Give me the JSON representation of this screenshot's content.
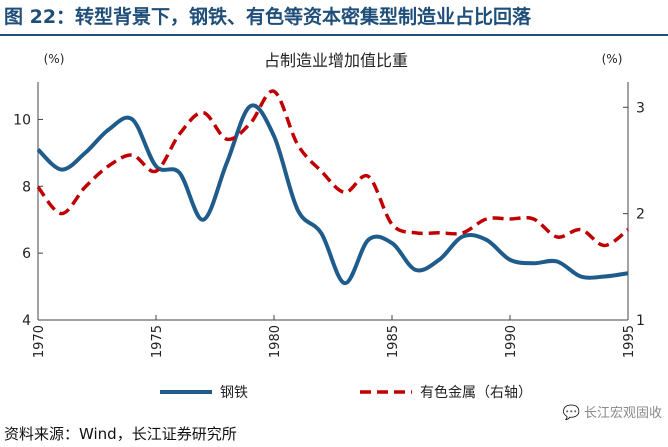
{
  "figure": {
    "title": "图 22：转型背景下，钢铁、有色等资本密集型制造业占比回落",
    "source": "资料来源：Wind，长江证券研究所",
    "watermark": "长江宏观固收",
    "watermark_icon": "wechat-bubble-icon"
  },
  "chart_data": {
    "type": "line",
    "title": "占制造业增加值比重",
    "left_unit": "(%)",
    "right_unit": "(%)",
    "xlim": [
      1970,
      1995
    ],
    "left_ylim": [
      4,
      11
    ],
    "right_ylim": [
      1,
      3.2
    ],
    "x_ticks": [
      1970,
      1975,
      1980,
      1985,
      1990,
      1995
    ],
    "left_ticks": [
      4,
      6,
      8,
      10
    ],
    "right_ticks": [
      1,
      2,
      3
    ],
    "grid": false,
    "legend_position": "bottom",
    "series": [
      {
        "name": "钢铁",
        "axis": "left",
        "color": "#1f5c8b",
        "style": "solid",
        "x": [
          1970,
          1971,
          1972,
          1973,
          1974,
          1975,
          1976,
          1977,
          1978,
          1979,
          1980,
          1981,
          1982,
          1983,
          1984,
          1985,
          1986,
          1987,
          1988,
          1989,
          1990,
          1991,
          1992,
          1993,
          1994,
          1995
        ],
        "values": [
          9.1,
          8.5,
          9.0,
          9.7,
          10.0,
          8.6,
          8.4,
          7.0,
          8.7,
          10.4,
          9.5,
          7.3,
          6.6,
          5.1,
          6.4,
          6.3,
          5.5,
          5.8,
          6.5,
          6.4,
          5.8,
          5.7,
          5.75,
          5.3,
          5.3,
          5.4
        ]
      },
      {
        "name": "有色金属（右轴）",
        "axis": "right",
        "color": "#c00000",
        "style": "dashed",
        "x": [
          1970,
          1971,
          1972,
          1973,
          1974,
          1975,
          1976,
          1977,
          1978,
          1979,
          1980,
          1981,
          1982,
          1983,
          1984,
          1985,
          1986,
          1987,
          1988,
          1989,
          1990,
          1991,
          1992,
          1993,
          1994,
          1995
        ],
        "values": [
          2.25,
          2.0,
          2.25,
          2.45,
          2.55,
          2.4,
          2.75,
          2.95,
          2.7,
          2.85,
          3.15,
          2.65,
          2.4,
          2.2,
          2.35,
          1.9,
          1.82,
          1.82,
          1.82,
          1.95,
          1.95,
          1.95,
          1.78,
          1.85,
          1.7,
          1.85
        ]
      }
    ]
  }
}
